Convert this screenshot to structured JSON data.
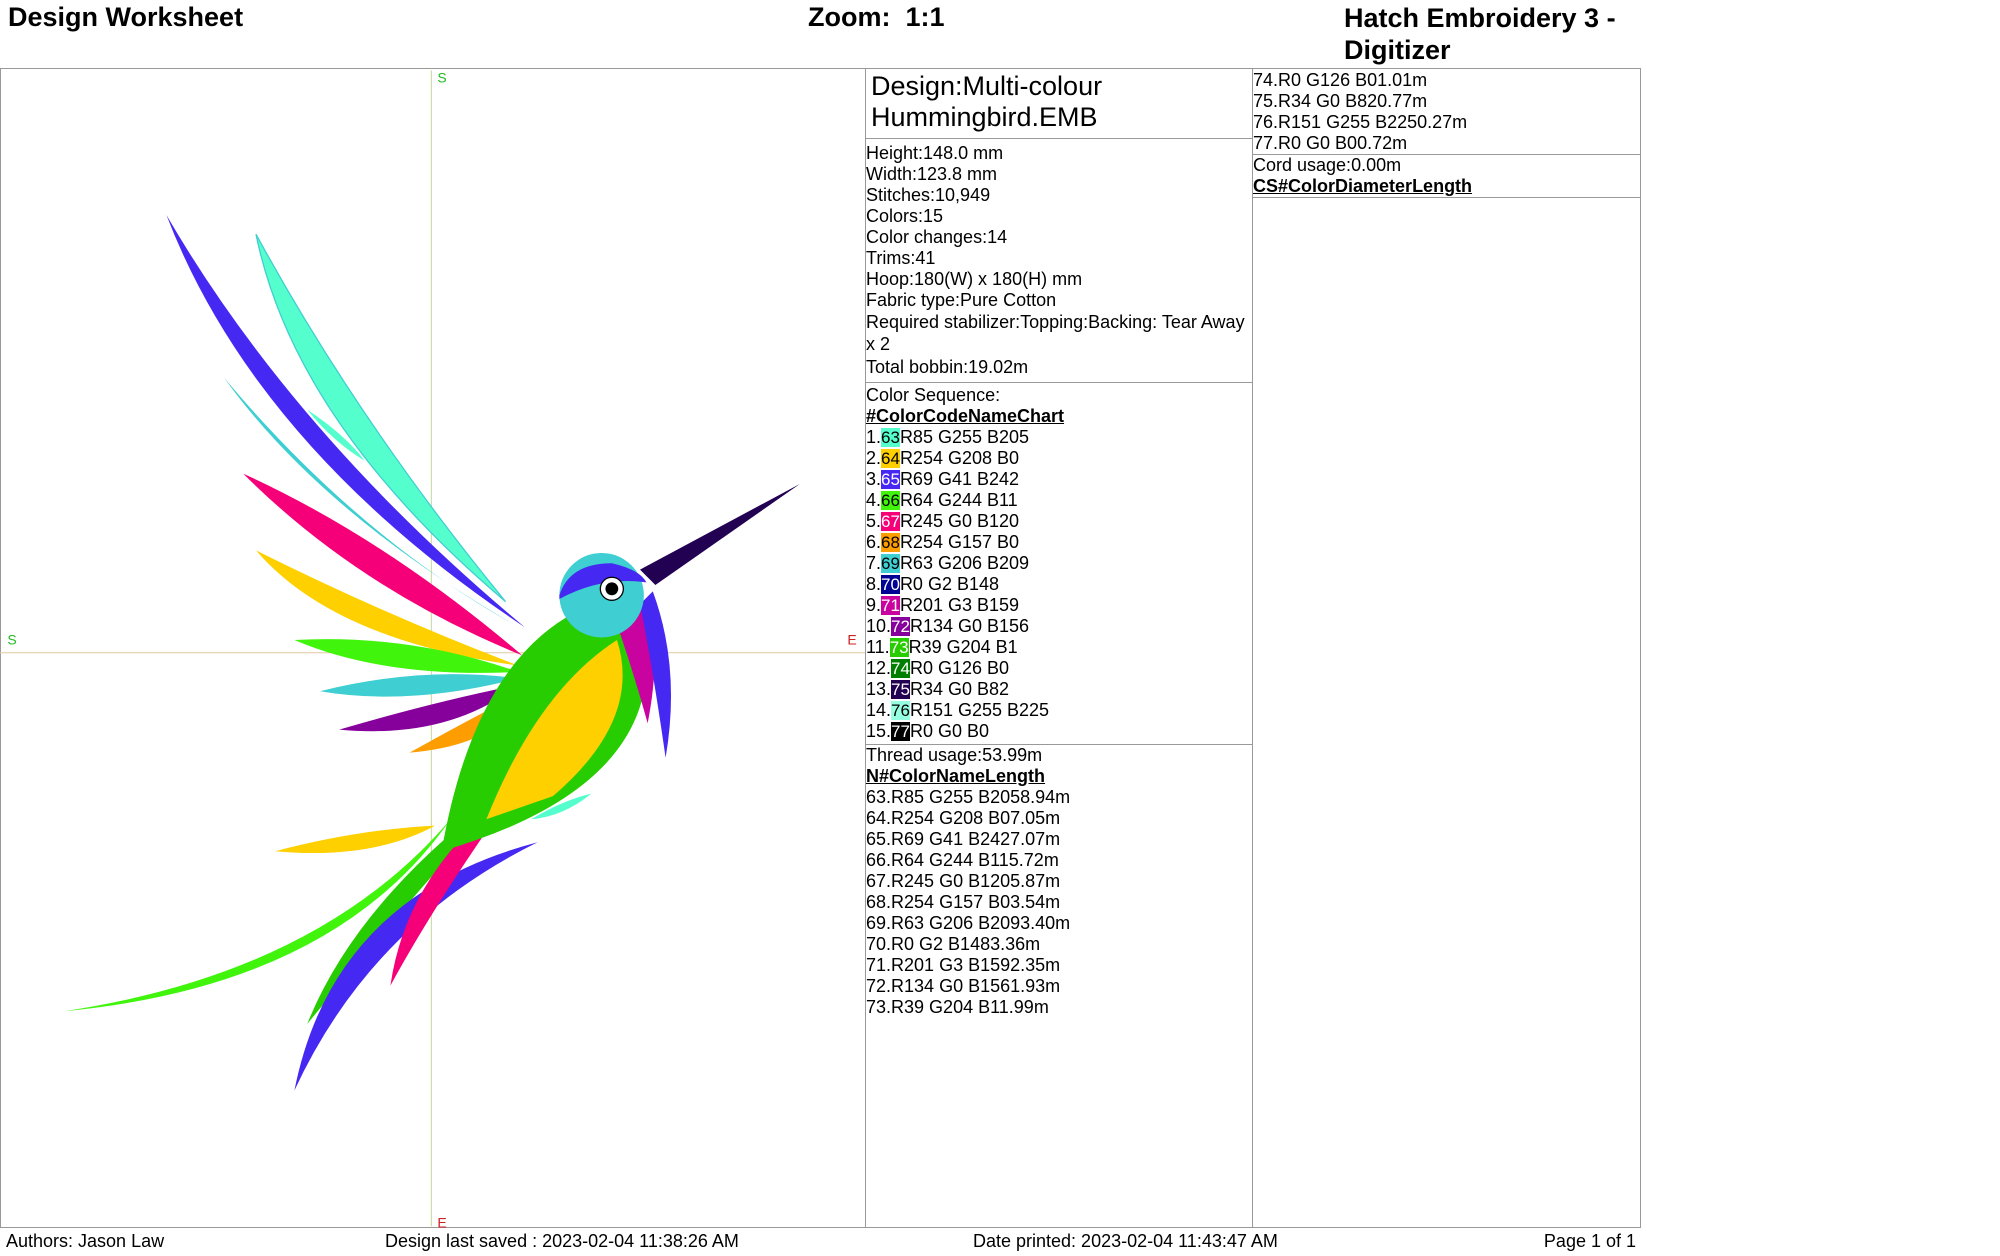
{
  "header": {
    "title": "Design Worksheet",
    "zoom": "Zoom:  1:1",
    "product": "Hatch Embroidery 3 - Digitizer"
  },
  "canvas": {
    "top_label": "S",
    "left_label": "S",
    "right_label": "E",
    "bottom_label": "E"
  },
  "design": {
    "name": "Design:Multi-colour Hummingbird.EMB",
    "info": [
      {
        "label": "Height:",
        "value": "148.0 mm"
      },
      {
        "label": "Width:",
        "value": "123.8 mm"
      },
      {
        "label": "Stitches:",
        "value": "10,949"
      },
      {
        "label": "Colors:",
        "value": "15"
      },
      {
        "label": "Color changes:",
        "value": "14"
      },
      {
        "label": "Trims:",
        "value": "41"
      },
      {
        "label": "Hoop:",
        "value": "180(W) x 180(H) mm"
      },
      {
        "label": "Fabric type:",
        "value": "Pure Cotton"
      },
      {
        "label": "Required stabilizer:",
        "value": [
          "Topping:",
          "Backing: Tear Away x 2"
        ]
      },
      {
        "label": "Total bobbin:",
        "value": "19.02m"
      }
    ]
  },
  "color_sequence": {
    "title": "Color Sequence:",
    "headers": [
      "#",
      "Color",
      "Code",
      "Name",
      "Chart"
    ],
    "rows": [
      {
        "number": "1.",
        "code": "63",
        "name": "R85 G255 B205",
        "color": "#55ffcd"
      },
      {
        "number": "2.",
        "code": "64",
        "name": "R254 G208 B0",
        "color": "#fed000"
      },
      {
        "number": "3.",
        "code": "65",
        "name": "R69 G41 B242",
        "color": "#4529f2"
      },
      {
        "number": "4.",
        "code": "66",
        "name": "R64 G244 B11",
        "color": "#40f40b"
      },
      {
        "number": "5.",
        "code": "67",
        "name": "R245 G0 B120",
        "color": "#f50078"
      },
      {
        "number": "6.",
        "code": "68",
        "name": "R254 G157 B0",
        "color": "#fe9d00"
      },
      {
        "number": "7.",
        "code": "69",
        "name": "R63 G206 B209",
        "color": "#3fced1"
      },
      {
        "number": "8.",
        "code": "70",
        "name": "R0 G2 B148",
        "color": "#000294"
      },
      {
        "number": "9.",
        "code": "71",
        "name": "R201 G3 B159",
        "color": "#c9039f"
      },
      {
        "number": "10.",
        "code": "72",
        "name": "R134 G0 B156",
        "color": "#86009c"
      },
      {
        "number": "11.",
        "code": "73",
        "name": "R39 G204 B1",
        "color": "#27cc01"
      },
      {
        "number": "12.",
        "code": "74",
        "name": "R0 G126 B0",
        "color": "#007e00"
      },
      {
        "number": "13.",
        "code": "75",
        "name": "R34 G0 B82",
        "color": "#220052"
      },
      {
        "number": "14.",
        "code": "76",
        "name": "R151 G255 B225",
        "color": "#97ffe1"
      },
      {
        "number": "15.",
        "code": "77",
        "name": "R0 G0 B0",
        "color": "#000000"
      }
    ]
  },
  "thread_usage": {
    "title": "Thread usage:",
    "total": "53.99m",
    "headers": [
      "N#",
      "Color",
      "Name",
      "Length"
    ],
    "rows": [
      {
        "number": "63.",
        "name": "R85 G255 B205",
        "length": "8.94m",
        "color": "#55ffcd"
      },
      {
        "number": "64.",
        "name": "R254 G208 B0",
        "length": "7.05m",
        "color": "#fed000"
      },
      {
        "number": "65.",
        "name": "R69 G41 B242",
        "length": "7.07m",
        "color": "#4529f2"
      },
      {
        "number": "66.",
        "name": "R64 G244 B11",
        "length": "5.72m",
        "color": "#40f40b"
      },
      {
        "number": "67.",
        "name": "R245 G0 B120",
        "length": "5.87m",
        "color": "#f50078"
      },
      {
        "number": "68.",
        "name": "R254 G157 B0",
        "length": "3.54m",
        "color": "#fe9d00"
      },
      {
        "number": "69.",
        "name": "R63 G206 B209",
        "length": "3.40m",
        "color": "#3fced1"
      },
      {
        "number": "70.",
        "name": "R0 G2 B148",
        "length": "3.36m",
        "color": "#000294"
      },
      {
        "number": "71.",
        "name": "R201 G3 B159",
        "length": "2.35m",
        "color": "#c9039f"
      },
      {
        "number": "72.",
        "name": "R134 G0 B156",
        "length": "1.93m",
        "color": "#86009c"
      },
      {
        "number": "73.",
        "name": "R39 G204 B1",
        "length": "1.99m",
        "color": "#27cc01"
      },
      {
        "number": "74.",
        "name": "R0 G126 B0",
        "length": "1.01m",
        "color": "#007e00"
      },
      {
        "number": "75.",
        "name": "R34 G0 B82",
        "length": "0.77m",
        "color": "#220052"
      },
      {
        "number": "76.",
        "name": "R151 G255 B225",
        "length": "0.27m",
        "color": "#97ffe1"
      },
      {
        "number": "77.",
        "name": "R0 G0 B0",
        "length": "0.72m",
        "color": "#000000"
      }
    ]
  },
  "cord": {
    "label": "Cord usage:",
    "value": "0.00m",
    "headers": [
      "CS#",
      "Color",
      "Diameter",
      "Length"
    ]
  },
  "footer": {
    "authors": "Authors: Jason Law",
    "saved": "Design last saved : 2023-02-04 11:38:26 AM",
    "printed": "Date printed: 2023-02-04 11:43:47 AM",
    "page": "Page 1 of 1"
  }
}
